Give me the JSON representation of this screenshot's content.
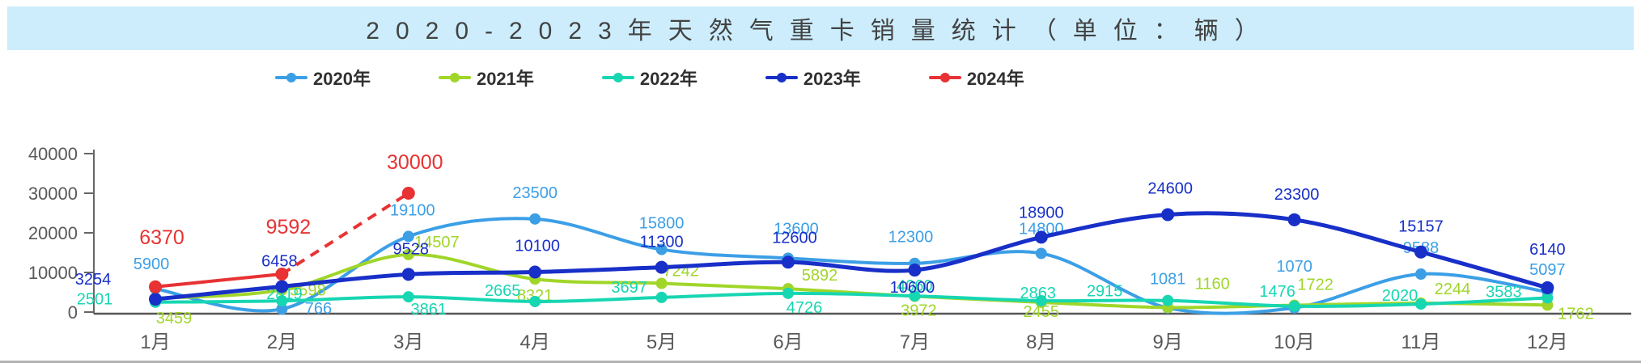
{
  "title": {
    "text": "2020-2023年天然气重卡销量统计（单位：辆）"
  },
  "legend": {
    "items": [
      "2020年",
      "2021年",
      "2022年",
      "2023年",
      "2024年"
    ]
  },
  "chart_data": {
    "type": "line",
    "title": "2020-2023年天然气重卡销量统计（单位：辆）",
    "categories": [
      "1月",
      "2月",
      "3月",
      "4月",
      "5月",
      "6月",
      "7月",
      "8月",
      "9月",
      "10月",
      "11月",
      "12月"
    ],
    "series": [
      {
        "name": "2020年",
        "color": "#3C9FE6",
        "smooth": true,
        "values": [
          5900,
          766,
          19100,
          23500,
          15800,
          13600,
          12300,
          14800,
          1081,
          1070,
          9588,
          5097
        ]
      },
      {
        "name": "2021年",
        "color": "#A0D629",
        "smooth": true,
        "values": [
          3459,
          5598,
          14507,
          8321,
          7242,
          5892,
          3972,
          2455,
          1160,
          1722,
          2244,
          1762
        ]
      },
      {
        "name": "2022年",
        "color": "#17D6B2",
        "smooth": true,
        "values": [
          2501,
          2819,
          3861,
          2665,
          3697,
          4726,
          4060,
          2863,
          2915,
          1476,
          2020,
          3583
        ]
      },
      {
        "name": "2023年",
        "color": "#182FC8",
        "smooth": true,
        "values": [
          3254,
          6458,
          9528,
          10100,
          11300,
          12600,
          10600,
          18900,
          24600,
          23300,
          15157,
          6140
        ]
      },
      {
        "name": "2024年",
        "color": "#E83233",
        "smooth": false,
        "dashed_from": 1,
        "values": [
          6370,
          9592,
          30000
        ]
      }
    ],
    "ylim": [
      0,
      40000
    ],
    "yticks": [
      0,
      10000,
      20000,
      30000,
      40000
    ],
    "xlabel": "",
    "ylabel": "",
    "grid": false,
    "legend_position": "top"
  }
}
